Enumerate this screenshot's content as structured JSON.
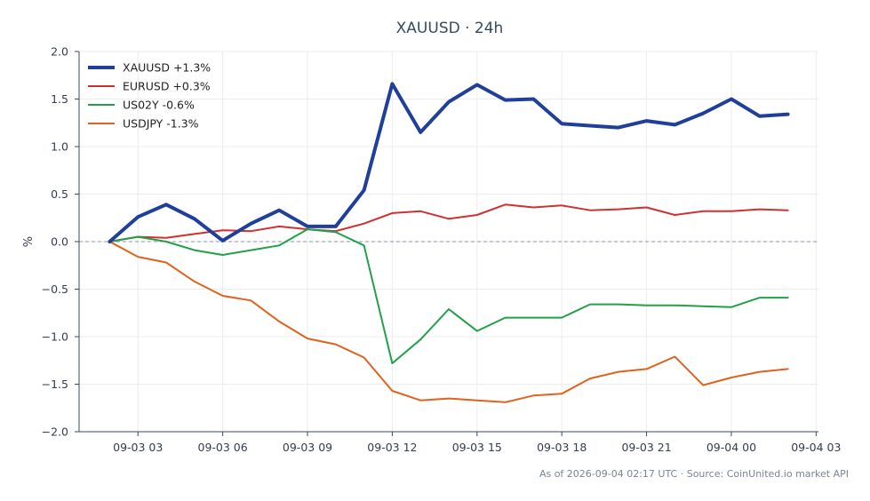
{
  "chart_data": {
    "type": "line",
    "title": "XAUUSD · 24h",
    "ylabel": "%",
    "xlabel": "",
    "x_ticks": [
      "09-03 03",
      "09-03 06",
      "09-03 09",
      "09-03 12",
      "09-03 15",
      "09-03 18",
      "09-03 21",
      "09-04 00",
      "09-04 03"
    ],
    "y_ticks": [
      "−2.0",
      "−1.5",
      "−1.0",
      "−0.5",
      "0.0",
      "0.5",
      "1.0",
      "1.5",
      "2.0"
    ],
    "ylim": [
      -2.0,
      2.0
    ],
    "xlim": [
      "09-03 00:55",
      "09-04 03:05"
    ],
    "grid": true,
    "zero_line": true,
    "legend_position": "top-left",
    "x": [
      "09-03 02:00",
      "09-03 03:00",
      "09-03 04:00",
      "09-03 05:00",
      "09-03 06:00",
      "09-03 07:00",
      "09-03 08:00",
      "09-03 09:00",
      "09-03 10:00",
      "09-03 11:00",
      "09-03 12:00",
      "09-03 13:00",
      "09-03 14:00",
      "09-03 15:00",
      "09-03 16:00",
      "09-03 17:00",
      "09-03 18:00",
      "09-03 19:00",
      "09-03 20:00",
      "09-03 21:00",
      "09-03 22:00",
      "09-03 23:00",
      "09-04 00:00",
      "09-04 01:00",
      "09-04 02:00"
    ],
    "series": [
      {
        "name": "XAUUSD +1.3%",
        "color": "#1f3f9a",
        "width": 4,
        "values": [
          0.0,
          0.26,
          0.39,
          0.24,
          0.01,
          0.19,
          0.33,
          0.16,
          0.16,
          0.54,
          1.66,
          1.15,
          1.47,
          1.65,
          1.49,
          1.5,
          1.24,
          1.22,
          1.2,
          1.27,
          1.23,
          1.35,
          1.5,
          1.32,
          1.34
        ]
      },
      {
        "name": "EURUSD +0.3%",
        "color": "#d03030",
        "width": 2,
        "values": [
          0.0,
          0.05,
          0.04,
          0.08,
          0.12,
          0.11,
          0.16,
          0.13,
          0.11,
          0.19,
          0.3,
          0.32,
          0.24,
          0.28,
          0.39,
          0.36,
          0.38,
          0.33,
          0.34,
          0.36,
          0.28,
          0.32,
          0.32,
          0.34,
          0.33
        ]
      },
      {
        "name": "US02Y -0.6%",
        "color": "#21a047",
        "width": 2,
        "values": [
          0.0,
          0.05,
          0.0,
          -0.09,
          -0.14,
          -0.09,
          -0.04,
          0.13,
          0.1,
          -0.04,
          -1.28,
          -1.03,
          -0.71,
          -0.94,
          -0.8,
          -0.8,
          -0.8,
          -0.66,
          -0.66,
          -0.67,
          -0.67,
          -0.68,
          -0.69,
          -0.59,
          -0.59
        ]
      },
      {
        "name": "USDJPY -1.3%",
        "color": "#e0621e",
        "width": 2,
        "values": [
          0.0,
          -0.16,
          -0.22,
          -0.42,
          -0.57,
          -0.62,
          -0.84,
          -1.02,
          -1.08,
          -1.22,
          -1.57,
          -1.67,
          -1.65,
          -1.67,
          -1.69,
          -1.62,
          -1.6,
          -1.44,
          -1.37,
          -1.34,
          -1.21,
          -1.51,
          -1.43,
          -1.37,
          -1.34
        ]
      }
    ],
    "footer": "As of 2026-09-04 02:17 UTC · Source: CoinUnited.io market API"
  }
}
